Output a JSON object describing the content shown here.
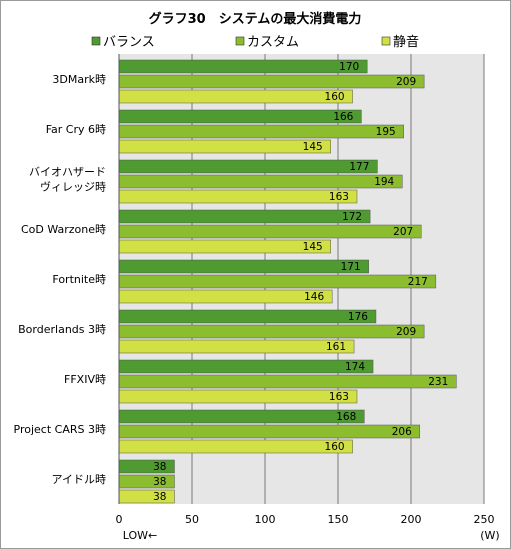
{
  "chart_data": {
    "type": "bar",
    "orientation": "horizontal",
    "title": "グラフ30　システムの最大消費電力",
    "categories": [
      [
        "3DMark時"
      ],
      [
        "Far Cry 6時"
      ],
      [
        "バイオハザード",
        "ヴィレッジ時"
      ],
      [
        "CoD Warzone時"
      ],
      [
        "Fortnite時"
      ],
      [
        "Borderlands 3時"
      ],
      [
        "FFXIV時"
      ],
      [
        "Project CARS 3時"
      ],
      [
        "アイドル時"
      ]
    ],
    "series": [
      {
        "name": "バランス",
        "color": "#4f9a31",
        "values": [
          170,
          166,
          177,
          172,
          171,
          176,
          174,
          168,
          38
        ]
      },
      {
        "name": "カスタム",
        "color": "#8cbd2f",
        "values": [
          209,
          195,
          194,
          207,
          217,
          209,
          231,
          206,
          38
        ]
      },
      {
        "name": "静音",
        "color": "#d0e045",
        "values": [
          160,
          145,
          163,
          145,
          146,
          161,
          163,
          160,
          38
        ]
      }
    ],
    "xlim": [
      0,
      250
    ],
    "xticks": [
      0,
      50,
      100,
      150,
      200,
      250
    ],
    "xunit": "(W)",
    "xnote": "LOW←",
    "legend_position": "top",
    "grid": true,
    "plot_background": "#e6e6e6",
    "gridline_color": "#7a7a7a"
  }
}
